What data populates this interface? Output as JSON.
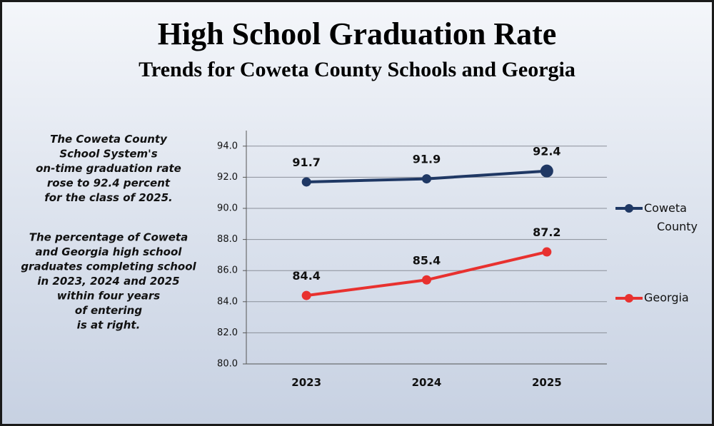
{
  "chart_data": {
    "type": "line",
    "title": "High School Graduation Rate",
    "subtitle": "Trends for Coweta County Schools and Georgia",
    "notes": [
      [
        "The Coweta County",
        "School System's",
        "on-time graduation rate",
        "rose to 92.4 percent",
        "for the class of 2025."
      ],
      [
        "The percentage of Coweta",
        "and Georgia high school",
        "graduates completing school",
        "in 2023, 2024 and 2025",
        "within four years",
        "of entering",
        "is at right."
      ]
    ],
    "categories": [
      "2023",
      "2024",
      "2025"
    ],
    "series": [
      {
        "name": "Coweta County",
        "color": "#1f3864",
        "values": [
          91.7,
          91.9,
          92.4
        ]
      },
      {
        "name": "Georgia",
        "color": "#e8312f",
        "values": [
          84.4,
          85.4,
          87.2
        ]
      }
    ],
    "ylim": [
      80,
      95
    ],
    "yticks": [
      {
        "value": 80,
        "label": "80.0"
      },
      {
        "value": 82,
        "label": "82.0"
      },
      {
        "value": 84,
        "label": "84.0"
      },
      {
        "value": 86,
        "label": "86.0"
      },
      {
        "value": 88,
        "label": "88.0"
      },
      {
        "value": 90,
        "label": "90.0"
      },
      {
        "value": 92,
        "label": "92.0"
      },
      {
        "value": 94,
        "label": "94.0"
      }
    ],
    "grid": true,
    "legend": "right"
  }
}
